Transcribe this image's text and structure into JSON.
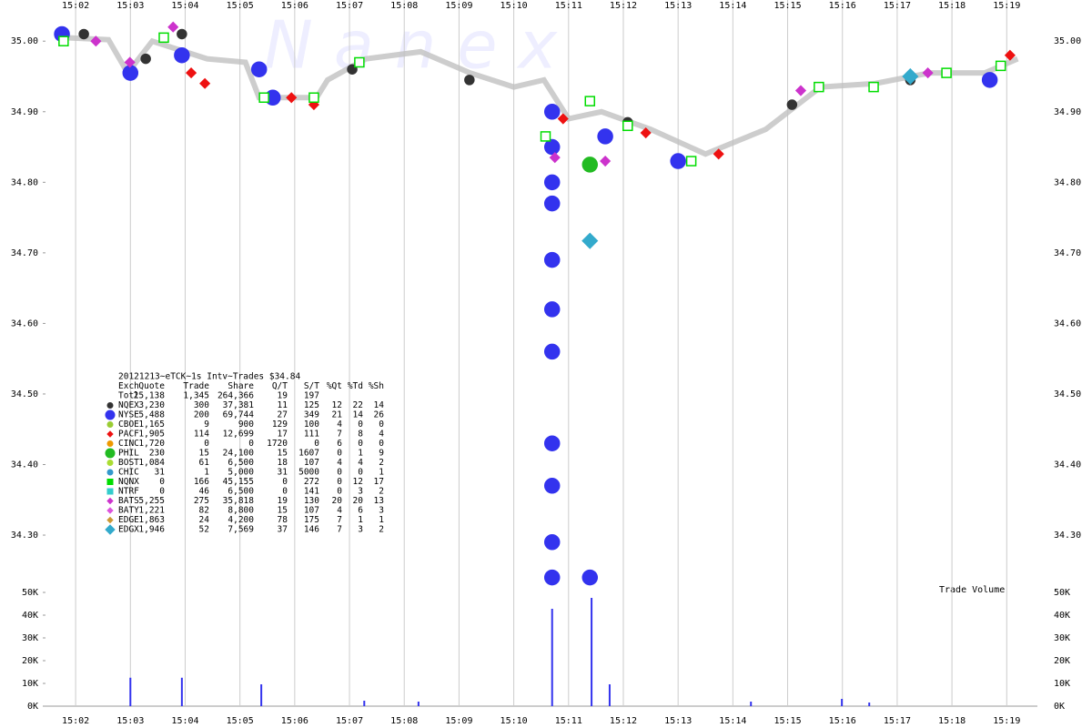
{
  "chart_data": {
    "type": "scatter",
    "watermark": "N a n e x",
    "volume_label": "Trade Volume",
    "xlim": [
      901.45,
      919.56
    ],
    "xticks": [
      {
        "value": 902,
        "label": "15:02"
      },
      {
        "value": 903,
        "label": "15:03"
      },
      {
        "value": 904,
        "label": "15:04"
      },
      {
        "value": 905,
        "label": "15:05"
      },
      {
        "value": 906,
        "label": "15:06"
      },
      {
        "value": 907,
        "label": "15:07"
      },
      {
        "value": 908,
        "label": "15:08"
      },
      {
        "value": 909,
        "label": "15:09"
      },
      {
        "value": 910,
        "label": "15:10"
      },
      {
        "value": 911,
        "label": "15:11"
      },
      {
        "value": 912,
        "label": "15:12"
      },
      {
        "value": 913,
        "label": "15:13"
      },
      {
        "value": 914,
        "label": "15:14"
      },
      {
        "value": 915,
        "label": "15:15"
      },
      {
        "value": 916,
        "label": "15:16"
      },
      {
        "value": 917,
        "label": "15:17"
      },
      {
        "value": 918,
        "label": "15:18"
      },
      {
        "value": 919,
        "label": "15:19"
      }
    ],
    "xgrid": true,
    "ylim": [
      34.233,
      35.048
    ],
    "yticks": [
      {
        "value": 34.3,
        "label": "34.30"
      },
      {
        "value": 34.4,
        "label": "34.40"
      },
      {
        "value": 34.5,
        "label": "34.50"
      },
      {
        "value": 34.6,
        "label": "34.60"
      },
      {
        "value": 34.7,
        "label": "34.70"
      },
      {
        "value": 34.8,
        "label": "34.80"
      },
      {
        "value": 34.9,
        "label": "34.90"
      },
      {
        "value": 35.0,
        "label": "35.00"
      }
    ],
    "nbbo": {
      "color": "#c0c0c0",
      "x": [
        901.8,
        902.6,
        902.95,
        903.4,
        904.4,
        905.1,
        905.35,
        906.4,
        906.6,
        907.3,
        908.3,
        909.2,
        910.0,
        910.55,
        911.0,
        911.6,
        912.5,
        913.5,
        914.6,
        915.6,
        916.6,
        917.6,
        918.6,
        919.2
      ],
      "values": [
        35.005,
        35.002,
        34.955,
        35.0,
        34.975,
        34.97,
        34.92,
        34.92,
        34.945,
        34.975,
        34.985,
        34.955,
        34.935,
        34.945,
        34.89,
        34.9,
        34.875,
        34.84,
        34.875,
        34.935,
        34.94,
        34.955,
        34.955,
        34.975
      ]
    },
    "table": {
      "title": "20121213~eTCK~1s Intv~Trades $34.84",
      "columns": [
        "Exch",
        "Quote",
        "Trade",
        "Share",
        "Q/T",
        "S/T",
        "%Qt",
        "%Td",
        "%Sh"
      ],
      "total": {
        "name": "Totl",
        "stats": [
          "25,138",
          "1,345",
          "264,366",
          "19",
          "197"
        ]
      }
    },
    "series": [
      {
        "name": "NQEX",
        "color": "#333333",
        "marker": "circle",
        "stats": [
          "3,230",
          "300",
          "37,381",
          "11",
          "125",
          "12",
          "22",
          "14"
        ],
        "x": [
          902.15,
          903.28,
          903.94,
          907.05,
          909.19,
          912.08,
          915.08,
          917.24
        ],
        "values": [
          35.01,
          34.975,
          35.01,
          34.96,
          34.945,
          34.885,
          34.91,
          34.945
        ]
      },
      {
        "name": "NYSE",
        "color": "#3333ee",
        "marker": "circle",
        "big": true,
        "stats": [
          "5,488",
          "200",
          "69,744",
          "27",
          "349",
          "21",
          "14",
          "26"
        ],
        "x": [
          901.75,
          903.0,
          903.94,
          905.35,
          905.6,
          910.7,
          910.7,
          910.7,
          910.7,
          910.7,
          910.7,
          910.7,
          910.7,
          910.7,
          910.7,
          910.7,
          911.39,
          911.67,
          913.0,
          918.69
        ],
        "values": [
          35.01,
          34.955,
          34.98,
          34.96,
          34.92,
          34.9,
          34.85,
          34.8,
          34.77,
          34.69,
          34.62,
          34.56,
          34.43,
          34.37,
          34.29,
          34.24,
          34.24,
          34.865,
          34.83,
          34.945
        ]
      },
      {
        "name": "CBOE",
        "color": "#99cc33",
        "marker": "circle",
        "stats": [
          "1,165",
          "9",
          "900",
          "129",
          "100",
          "4",
          "0",
          "0"
        ]
      },
      {
        "name": "PACF",
        "color": "#ee1111",
        "marker": "diamond",
        "stats": [
          "1,905",
          "114",
          "12,699",
          "17",
          "111",
          "7",
          "8",
          "4"
        ],
        "x": [
          904.11,
          904.36,
          905.94,
          906.35,
          910.9,
          912.41,
          913.74,
          919.06
        ],
        "values": [
          34.955,
          34.94,
          34.92,
          34.91,
          34.89,
          34.87,
          34.84,
          34.98
        ]
      },
      {
        "name": "CINC",
        "color": "#ee9900",
        "marker": "circle",
        "stats": [
          "1,720",
          "0",
          "0",
          "1720",
          "0",
          "6",
          "0",
          "0"
        ]
      },
      {
        "name": "PHIL",
        "color": "#22bb22",
        "marker": "circle",
        "big": true,
        "stats": [
          "230",
          "15",
          "24,100",
          "15",
          "1607",
          "0",
          "1",
          "9"
        ],
        "x": [
          911.39
        ],
        "values": [
          34.825
        ]
      },
      {
        "name": "BOST",
        "color": "#aadd33",
        "marker": "circle",
        "stats": [
          "1,084",
          "61",
          "6,500",
          "18",
          "107",
          "4",
          "4",
          "2"
        ]
      },
      {
        "name": "CHIC",
        "color": "#3399cc",
        "marker": "circle",
        "stats": [
          "31",
          "1",
          "5,000",
          "31",
          "5000",
          "0",
          "0",
          "1"
        ]
      },
      {
        "name": "NQNX",
        "color": "#00dd00",
        "marker": "square",
        "hollow": true,
        "stats": [
          "0",
          "166",
          "45,155",
          "0",
          "272",
          "0",
          "12",
          "17"
        ],
        "x": [
          901.78,
          903.61,
          905.44,
          906.35,
          907.18,
          910.58,
          911.39,
          912.08,
          913.24,
          915.57,
          916.57,
          917.9,
          918.89
        ],
        "values": [
          35.0,
          35.005,
          34.92,
          34.92,
          34.97,
          34.865,
          34.915,
          34.88,
          34.83,
          34.935,
          34.935,
          34.955,
          34.965
        ]
      },
      {
        "name": "NTRF",
        "color": "#33cccc",
        "marker": "square",
        "stats": [
          "0",
          "46",
          "6,500",
          "0",
          "141",
          "0",
          "3",
          "2"
        ]
      },
      {
        "name": "BATS",
        "color": "#cc33cc",
        "marker": "diamond",
        "stats": [
          "5,255",
          "275",
          "35,818",
          "19",
          "130",
          "20",
          "20",
          "13"
        ],
        "x": [
          902.37,
          902.99,
          903.78,
          910.75,
          911.67,
          915.24,
          917.56
        ],
        "values": [
          35.0,
          34.97,
          35.02,
          34.835,
          34.83,
          34.93,
          34.955
        ]
      },
      {
        "name": "BATY",
        "color": "#dd55dd",
        "marker": "diamond",
        "stats": [
          "1,221",
          "82",
          "8,800",
          "15",
          "107",
          "4",
          "6",
          "3"
        ]
      },
      {
        "name": "EDGE",
        "color": "#cc9933",
        "marker": "diamond",
        "stats": [
          "1,863",
          "24",
          "4,200",
          "78",
          "175",
          "7",
          "1",
          "1"
        ]
      },
      {
        "name": "EDGX",
        "color": "#33aacc",
        "marker": "diamond",
        "big": true,
        "stats": [
          "1,946",
          "52",
          "7,569",
          "37",
          "146",
          "7",
          "3",
          "2"
        ],
        "x": [
          911.39,
          917.24
        ],
        "values": [
          34.717,
          34.95
        ]
      }
    ],
    "volume": {
      "color": "#3333ee",
      "ylim": [
        0,
        52400
      ],
      "yticks": [
        {
          "value": 0,
          "label": "0K"
        },
        {
          "value": 10000,
          "label": "10K"
        },
        {
          "value": 20000,
          "label": "20K"
        },
        {
          "value": 30000,
          "label": "30K"
        },
        {
          "value": 40000,
          "label": "40K"
        },
        {
          "value": 50000,
          "label": "50K"
        }
      ],
      "x": [
        903.0,
        903.94,
        905.39,
        907.27,
        908.26,
        910.7,
        911.42,
        911.75,
        914.33,
        915.99,
        916.49
      ],
      "values": [
        12500,
        12500,
        9600,
        2400,
        2000,
        42800,
        47600,
        9600,
        2000,
        3200,
        1600
      ]
    }
  }
}
